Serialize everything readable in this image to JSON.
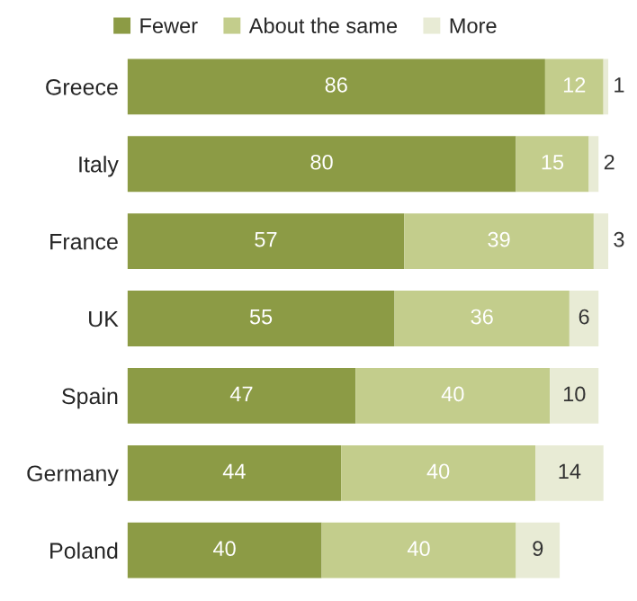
{
  "chart_data": {
    "type": "bar",
    "orientation": "horizontal",
    "stacked": true,
    "data_labels": true,
    "legend": "top",
    "tick_labels": "y",
    "grid": false,
    "categories": [
      "Greece",
      "Italy",
      "France",
      "UK",
      "Spain",
      "Germany",
      "Poland"
    ],
    "series": [
      {
        "name": "Fewer",
        "color": "#8c9b45",
        "values": [
          86,
          80,
          57,
          55,
          47,
          44,
          40
        ]
      },
      {
        "name": "About the same",
        "color": "#c3cd8c",
        "values": [
          12,
          15,
          39,
          36,
          40,
          40,
          40
        ]
      },
      {
        "name": "More",
        "color": "#e8ebd5",
        "values": [
          1,
          2,
          3,
          6,
          10,
          14,
          9
        ]
      }
    ]
  }
}
